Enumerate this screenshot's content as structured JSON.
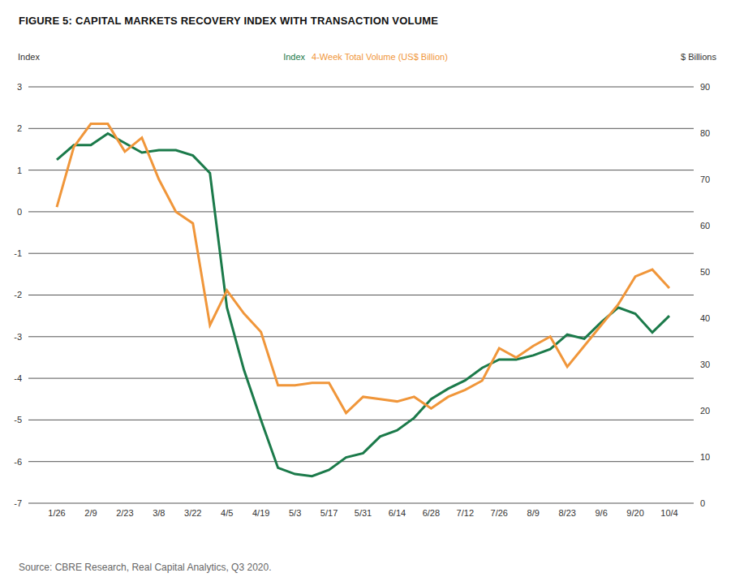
{
  "chart_data": {
    "type": "line",
    "title": "FIGURE 5: CAPITAL MARKETS RECOVERY INDEX WITH TRANSACTION VOLUME",
    "y_label": "Index",
    "y2_label": "$ Billions",
    "source": "Source: CBRE Research, Real Capital Analytics, Q3 2020.",
    "categories": [
      "1/26",
      null,
      "2/9",
      null,
      "2/23",
      null,
      "3/8",
      null,
      "3/22",
      null,
      "4/5",
      null,
      "4/19",
      null,
      "5/3",
      null,
      "5/17",
      null,
      "5/31",
      null,
      "6/14",
      null,
      "6/28",
      null,
      "7/12",
      null,
      "7/26",
      null,
      "8/9",
      null,
      "8/23",
      null,
      "9/6",
      null,
      "9/20",
      null,
      "10/4"
    ],
    "series": [
      {
        "name": "Index",
        "color": "#1b7a4a",
        "values": [
          1.25,
          1.6,
          1.6,
          1.88,
          1.65,
          1.42,
          1.48,
          1.48,
          1.35,
          0.93,
          -2.3,
          -3.8,
          -5.0,
          -6.15,
          -6.3,
          -6.35,
          -6.2,
          -5.9,
          -5.8,
          -5.4,
          -5.25,
          -4.95,
          -4.5,
          -4.25,
          -4.05,
          -3.75,
          -3.55,
          -3.55,
          -3.45,
          -3.3,
          -2.95,
          -3.05,
          -2.65,
          -2.3,
          -2.45,
          -2.9,
          -2.5
        ]
      },
      {
        "name": "4-Week Total Volume (US$ Billion)",
        "color": "#f0963a",
        "axis": "y2",
        "values": [
          64,
          77,
          82,
          82,
          76,
          79,
          70,
          63,
          60.5,
          38.5,
          46,
          41,
          37,
          25.5,
          25.5,
          26,
          26,
          19.5,
          23,
          22.5,
          22,
          23,
          20.5,
          23,
          24.5,
          26.5,
          33.5,
          31.5,
          34,
          36,
          29.5,
          34,
          38.5,
          43,
          49,
          50.5,
          46.5
        ]
      }
    ],
    "ylim": [
      -7,
      3
    ],
    "yticks": [
      -7,
      -6,
      -5,
      -4,
      -3,
      -2,
      -1,
      0,
      1,
      2,
      3
    ],
    "y2lim": [
      0,
      90
    ],
    "y2ticks": [
      0,
      10,
      20,
      30,
      40,
      50,
      60,
      70,
      80,
      90
    ],
    "grid": true,
    "legend": "top"
  }
}
